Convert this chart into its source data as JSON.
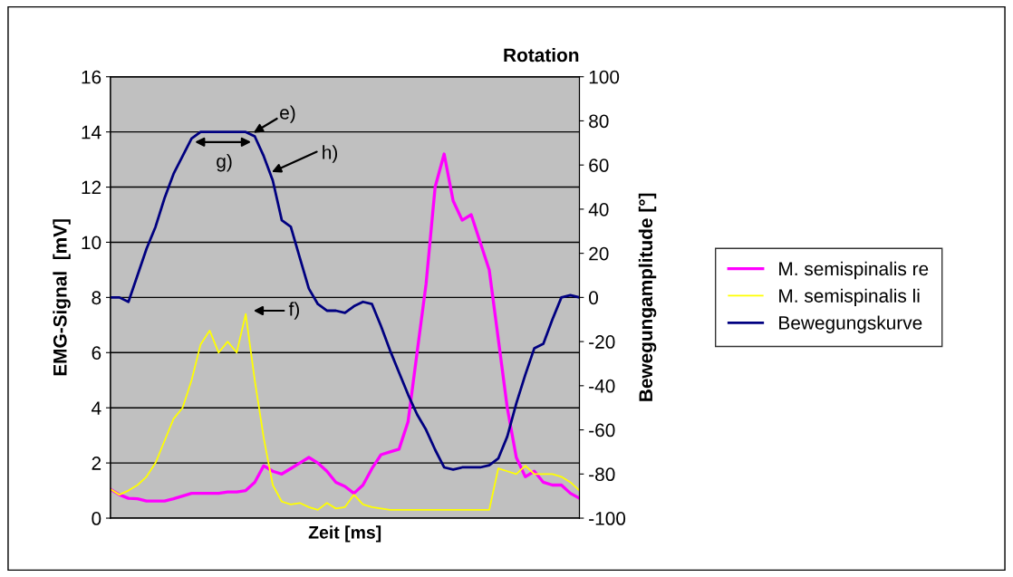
{
  "chart_data": {
    "type": "line",
    "title": "Rotation",
    "xlabel": "Zeit [ms]",
    "ylabel": "EMG-Signal  [mV]",
    "y2label": "Bewegungamplitude [°]",
    "categories": [
      null,
      null,
      null,
      null,
      null,
      null,
      null,
      null,
      null,
      null,
      null,
      null,
      null,
      null,
      null,
      null,
      null,
      null,
      null,
      null,
      null,
      null,
      null,
      null,
      null,
      null,
      null,
      null,
      null,
      null,
      null,
      null,
      null,
      null,
      null,
      null,
      null,
      null,
      null,
      null,
      null,
      null,
      null,
      null,
      null,
      null,
      null,
      null,
      null,
      null,
      null,
      null,
      null
    ],
    "series": [
      {
        "name": "M. semispinalis re",
        "color": "#ff00ff",
        "values": [
          1.05,
          0.85,
          0.72,
          0.7,
          0.62,
          0.62,
          0.62,
          0.7,
          0.8,
          0.9,
          0.9,
          0.9,
          0.9,
          0.95,
          0.95,
          1.0,
          1.3,
          1.9,
          1.7,
          1.6,
          1.8,
          2.0,
          2.2,
          2.0,
          1.7,
          1.3,
          1.15,
          0.9,
          1.2,
          1.8,
          2.3,
          2.4,
          2.5,
          3.5,
          6.0,
          8.5,
          12.0,
          13.2,
          11.5,
          10.8,
          11.0,
          10.0,
          9.0,
          6.5,
          4.0,
          2.2,
          1.5,
          1.7,
          1.3,
          1.2,
          1.2,
          0.9,
          0.72
        ]
      },
      {
        "name": "M. semispinalis li",
        "color": "#ffff00",
        "values": [
          1.05,
          0.85,
          1.0,
          1.2,
          1.5,
          2.0,
          2.8,
          3.6,
          4.0,
          5.0,
          6.3,
          6.8,
          6.0,
          6.4,
          6.0,
          7.4,
          5.0,
          2.9,
          1.2,
          0.6,
          0.5,
          0.55,
          0.4,
          0.3,
          0.55,
          0.35,
          0.4,
          0.85,
          0.5,
          0.4,
          0.35,
          0.3,
          0.3,
          0.3,
          0.3,
          0.3,
          0.3,
          0.3,
          0.3,
          0.3,
          0.3,
          0.3,
          0.3,
          1.8,
          1.7,
          1.6,
          1.9,
          1.6,
          1.6,
          1.6,
          1.5,
          1.3,
          1.0
        ]
      },
      {
        "name": "Bewegungskurve",
        "color": "#000080",
        "axis": "y2",
        "values": [
          0,
          0,
          -2,
          10,
          22,
          32,
          45,
          56,
          64,
          72,
          75,
          75,
          75,
          75,
          75,
          75,
          73,
          64,
          53,
          35,
          32,
          18,
          4,
          -3,
          -6,
          -6,
          -7,
          -4,
          -2,
          -3,
          -13,
          -24,
          -34,
          -44,
          -53,
          -60,
          -69,
          -77,
          -78,
          -77,
          -77,
          -77,
          -76,
          -73,
          -63,
          -48,
          -35,
          -23,
          -21,
          -10,
          0,
          1,
          0
        ]
      }
    ],
    "ylim": [
      0,
      16
    ],
    "yticks": [
      0,
      2,
      4,
      6,
      8,
      10,
      12,
      14,
      16
    ],
    "y2lim": [
      -100,
      100
    ],
    "y2ticks": [
      -100,
      -80,
      -60,
      -40,
      -20,
      0,
      20,
      40,
      60,
      80,
      100
    ],
    "grid": "y",
    "legend": "right",
    "tick_labels": "y",
    "annotations": [
      "e)",
      "h)",
      "f)",
      "g)"
    ]
  }
}
